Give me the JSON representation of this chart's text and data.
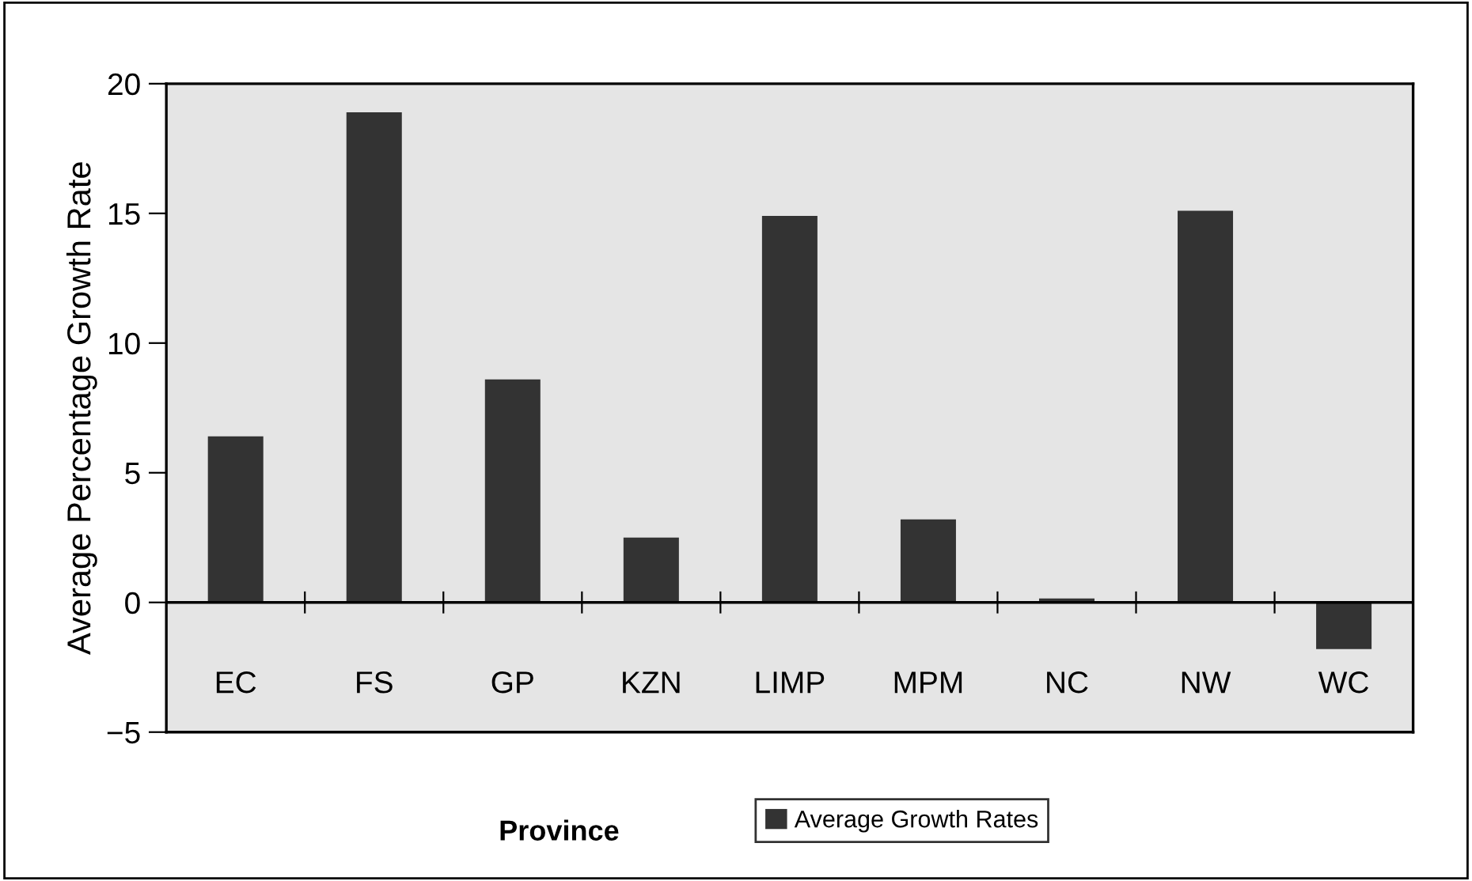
{
  "chart_data": {
    "type": "bar",
    "categories": [
      "EC",
      "FS",
      "GP",
      "KZN",
      "LIMP",
      "MPM",
      "NC",
      "NW",
      "WC"
    ],
    "series": [
      {
        "name": "Average Growth Rates",
        "color": "#333333",
        "values": [
          6.4,
          18.9,
          8.6,
          2.5,
          14.9,
          3.2,
          0.15,
          15.1,
          -1.8
        ]
      }
    ],
    "xlabel": "Province",
    "ylabel": "Average Percentage Growth Rate",
    "ylim": [
      -5,
      20
    ],
    "yticks": [
      {
        "value": -5,
        "label": "−5"
      },
      0,
      5,
      10,
      15,
      20
    ],
    "ref_lines": [
      {
        "axis": "y",
        "value": 0,
        "color": "#000000",
        "line_style": "solid"
      }
    ],
    "legend": "bottom"
  }
}
